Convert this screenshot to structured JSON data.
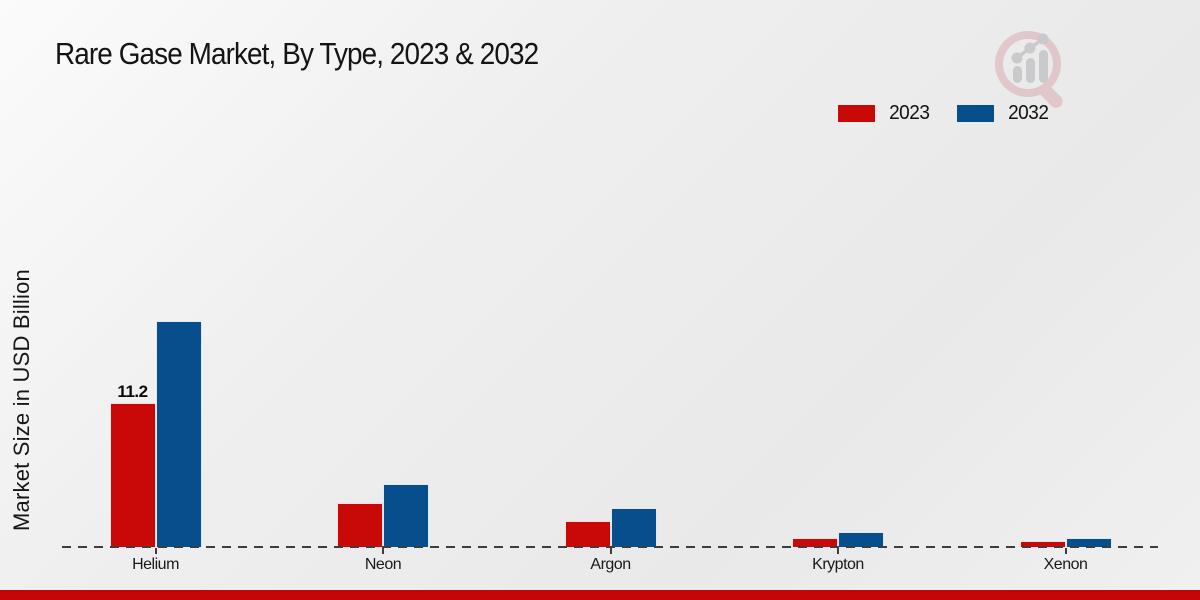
{
  "title": "Rare Gase Market, By Type, 2023 & 2032",
  "ylabel": "Market Size in USD Billion",
  "legend": [
    {
      "label": "2023",
      "color": "#c90808"
    },
    {
      "label": "2032",
      "color": "#064f8c"
    }
  ],
  "chart_data": {
    "type": "bar",
    "title": "Rare Gase Market, By Type, 2023 & 2032",
    "ylabel": "Market Size in USD Billion",
    "xlabel": "",
    "categories": [
      "Helium",
      "Neon",
      "Argon",
      "Krypton",
      "Xenon"
    ],
    "series": [
      {
        "name": "2023",
        "color": "#c90808",
        "values": [
          11.2,
          3.4,
          2.0,
          0.7,
          0.5
        ]
      },
      {
        "name": "2032",
        "color": "#064f8c",
        "values": [
          17.6,
          4.9,
          3.0,
          1.2,
          0.7
        ]
      }
    ],
    "bar_labels": [
      {
        "category": "Helium",
        "series": "2023",
        "text": "11.2"
      }
    ],
    "ylim": [
      0,
      20
    ],
    "grid": false,
    "baseline": "dashed",
    "legend_position": "top-right"
  },
  "branding": {
    "watermark_icon": "magnifier-bar-chart-logo",
    "watermark_pink": "#d9a9ae",
    "watermark_gray": "#c2c2c7"
  },
  "footer": {
    "band_color": "#c40606"
  }
}
